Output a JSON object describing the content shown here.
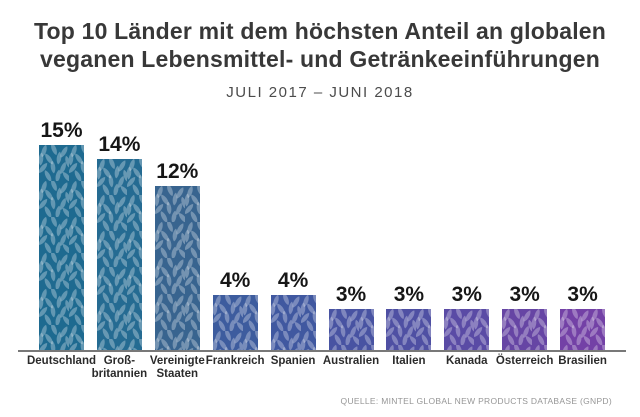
{
  "title": {
    "line1": "Top 10 Länder mit dem höchsten Anteil an globalen",
    "line2": "veganen Lebensmittel- und Getränkeeinführungen"
  },
  "subtitle": "JULI 2017 – JUNI 2018",
  "source": "QUELLE: MINTEL GLOBAL NEW PRODUCTS DATABASE (GNPD)",
  "colors": {
    "axis": "#787878",
    "title_text": "#383838",
    "value_text": "#161616",
    "category_text": "#2b2b2b",
    "leaf_overlay_fill": "#ffffff",
    "leaf_overlay_opacity": "0.3"
  },
  "chart_data": {
    "type": "bar",
    "title": "Top 10 Länder mit dem höchsten Anteil an globalen veganen Lebensmittel- und Getränkeeinführungen",
    "subtitle": "JULI 2017 – JUNI 2018",
    "source": "QUELLE: MINTEL GLOBAL NEW PRODUCTS DATABASE (GNPD)",
    "categories": [
      "Deutschland",
      "Großbritannien",
      "Vereinigte Staaten",
      "Frankreich",
      "Spanien",
      "Australien",
      "Italien",
      "Kanada",
      "Österreich",
      "Brasilien"
    ],
    "category_lines": [
      [
        "Deutschland"
      ],
      [
        "Groß-",
        "britannien"
      ],
      [
        "Vereinigte",
        "Staaten"
      ],
      [
        "Frankreich"
      ],
      [
        "Spanien"
      ],
      [
        "Australien"
      ],
      [
        "Italien"
      ],
      [
        "Kanada"
      ],
      [
        "Österreich"
      ],
      [
        "Brasilien"
      ]
    ],
    "values": [
      15,
      14,
      12,
      4,
      4,
      3,
      3,
      3,
      3,
      3
    ],
    "value_labels": [
      "15%",
      "14%",
      "12%",
      "4%",
      "4%",
      "3%",
      "3%",
      "3%",
      "3%",
      "3%"
    ],
    "bar_colors": [
      "#1e6a90",
      "#256b92",
      "#38648f",
      "#3d5c9e",
      "#4058a0",
      "#4853a2",
      "#4f50a3",
      "#5a4ba5",
      "#6645a4",
      "#7341a6"
    ],
    "unit": "%",
    "ylim": [
      0,
      16
    ],
    "grid": false,
    "legend": false,
    "bar_texture": "leaf-pattern"
  }
}
